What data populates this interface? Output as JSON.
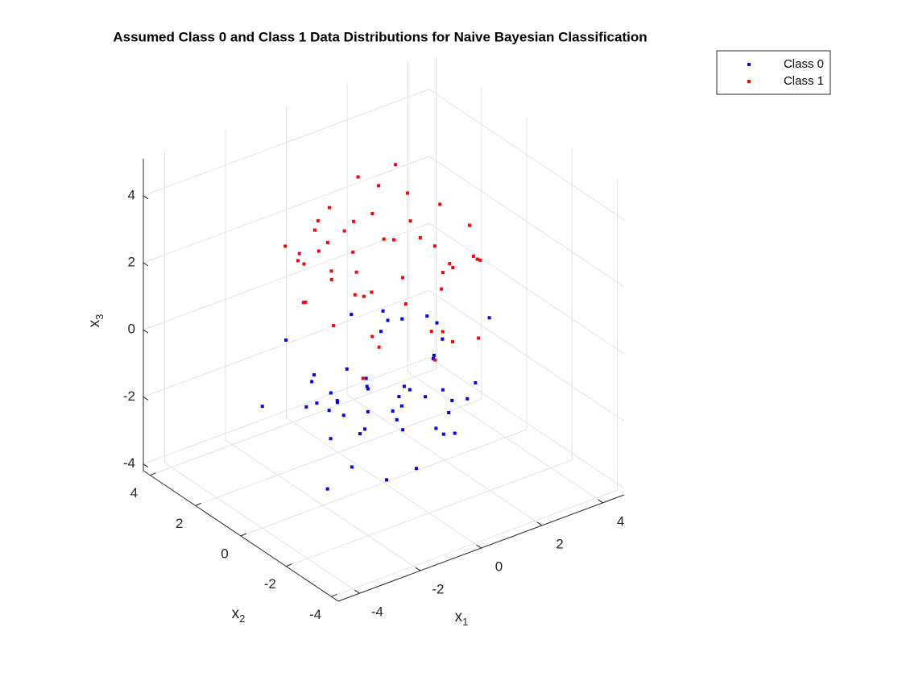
{
  "chart_data": {
    "type": "scatter3d",
    "title": "Assumed Class 0 and Class 1 Data Distributions for Naive Bayesian Classification",
    "xlabel": "x1",
    "ylabel": "x2",
    "zlabel": "x3",
    "xlim": [
      -4.7,
      4.7
    ],
    "ylim": [
      -4.3,
      4.3
    ],
    "zlim": [
      -4.2,
      5.1
    ],
    "xticks": [
      -4,
      -2,
      0,
      2,
      4
    ],
    "yticks": [
      -4,
      -2,
      0,
      2,
      4
    ],
    "zticks": [
      -4,
      -2,
      0,
      2,
      4
    ],
    "grid": true,
    "legend": "northeast",
    "series": [
      {
        "name": "Class 0",
        "color": "#0000ff",
        "x": [
          0.3,
          -1.2,
          0.8,
          1.5,
          -0.4,
          0.1,
          -2.1,
          1.1,
          -0.7,
          0.5,
          2.3,
          -1.6,
          0.9,
          -0.2,
          1.8,
          -0.9,
          0.4,
          -1.4,
          0.0,
          1.2,
          -0.5,
          2.0,
          -2.5,
          0.6,
          -1.0,
          1.4,
          -0.3,
          0.7,
          -1.8,
          0.2,
          1.0,
          -0.6,
          2.6,
          -1.1,
          0.3,
          -2.8,
          1.6,
          -0.1,
          0.8,
          -1.3,
          3.1,
          -0.8,
          0.5,
          1.9,
          -2.2,
          0.1,
          -0.4,
          1.3,
          -1.7,
          0.9
        ],
        "y": [
          -0.5,
          0.8,
          1.2,
          -1.0,
          0.3,
          -1.7,
          0.6,
          0.9,
          -0.2,
          2.1,
          -0.6,
          -1.1,
          0.4,
          1.5,
          0.2,
          -2.0,
          -0.9,
          1.3,
          0.7,
          -0.3,
          2.4,
          0.5,
          -0.4,
          -1.5,
          1.0,
          1.7,
          -0.8,
          0.1,
          1.9,
          -2.6,
          -1.3,
          0.6,
          0.9,
          -0.7,
          1.1,
          1.6,
          -1.9,
          -0.1,
          2.7,
          0.3,
          -0.5,
          -1.2,
          0.0,
          1.4,
          -0.9,
          -3.0,
          1.8,
          -0.6,
          0.2,
          -1.4
        ],
        "z": [
          -1.2,
          -2.0,
          -0.5,
          -1.8,
          -2.6,
          -0.9,
          -1.5,
          -3.1,
          -1.0,
          -0.3,
          -2.2,
          -1.7,
          0.2,
          -2.8,
          -1.1,
          -0.7,
          -3.5,
          -1.3,
          -2.4,
          0.5,
          -1.9,
          -1.4,
          -0.8,
          -2.1,
          -3.0,
          -0.6,
          -1.6,
          -2.9,
          -0.2,
          -1.0,
          -2.5,
          -3.8,
          -1.2,
          -0.4,
          -2.0,
          -1.7,
          -0.9,
          1.0,
          -2.3,
          -1.5,
          -0.1,
          -3.3,
          -1.8,
          -2.7,
          -0.6,
          -1.4,
          -2.2,
          0.4,
          -3.9,
          -1.1
        ]
      },
      {
        "name": "Class 1",
        "color": "#ff0000",
        "x": [
          -0.6,
          1.3,
          0.2,
          -1.5,
          0.9,
          2.2,
          -0.3,
          0.5,
          -2.0,
          1.7,
          0.0,
          -1.1,
          0.7,
          -0.4,
          2.8,
          -0.9,
          1.0,
          -2.4,
          0.3,
          1.5,
          -0.7,
          0.6,
          -1.3,
          2.0,
          0.1,
          -0.2,
          1.2,
          -1.8,
          0.8,
          -0.5,
          2.5,
          -1.0,
          0.4,
          -2.7,
          1.9,
          -0.1,
          0.6,
          -1.6,
          1.1,
          3.0,
          -0.8,
          0.2,
          -1.2,
          1.4,
          -0.3,
          0.9,
          -2.2,
          1.6,
          -0.6,
          0.0
        ],
        "y": [
          0.4,
          -0.8,
          1.6,
          0.2,
          -1.4,
          0.7,
          2.0,
          -0.3,
          1.1,
          -1.9,
          0.5,
          -0.6,
          2.3,
          1.2,
          -0.2,
          -1.0,
          0.9,
          0.3,
          -2.2,
          1.5,
          -0.4,
          0.8,
          1.8,
          -1.1,
          -0.7,
          2.6,
          0.0,
          -1.5,
          1.3,
          0.6,
          -0.9,
          1.7,
          -2.5,
          0.1,
          -0.5,
          1.0,
          -1.3,
          2.2,
          0.3,
          -0.1,
          1.4,
          -2.0,
          0.7,
          -0.6,
          1.9,
          -1.7,
          0.5,
          1.1,
          -0.3,
          2.9
        ],
        "z": [
          2.1,
          1.5,
          2.8,
          0.9,
          2.4,
          1.8,
          3.2,
          1.1,
          2.6,
          0.4,
          3.6,
          2.0,
          1.4,
          2.9,
          1.7,
          0.6,
          2.3,
          3.0,
          1.2,
          4.1,
          1.9,
          2.5,
          0.8,
          3.3,
          2.2,
          1.6,
          2.7,
          0.2,
          3.8,
          1.3,
          2.0,
          2.9,
          1.0,
          3.5,
          1.8,
          4.5,
          0.7,
          2.4,
          3.1,
          1.5,
          2.6,
          0.3,
          2.2,
          3.9,
          1.1,
          2.8,
          1.7,
          3.4,
          0.5,
          2.3
        ]
      }
    ]
  }
}
